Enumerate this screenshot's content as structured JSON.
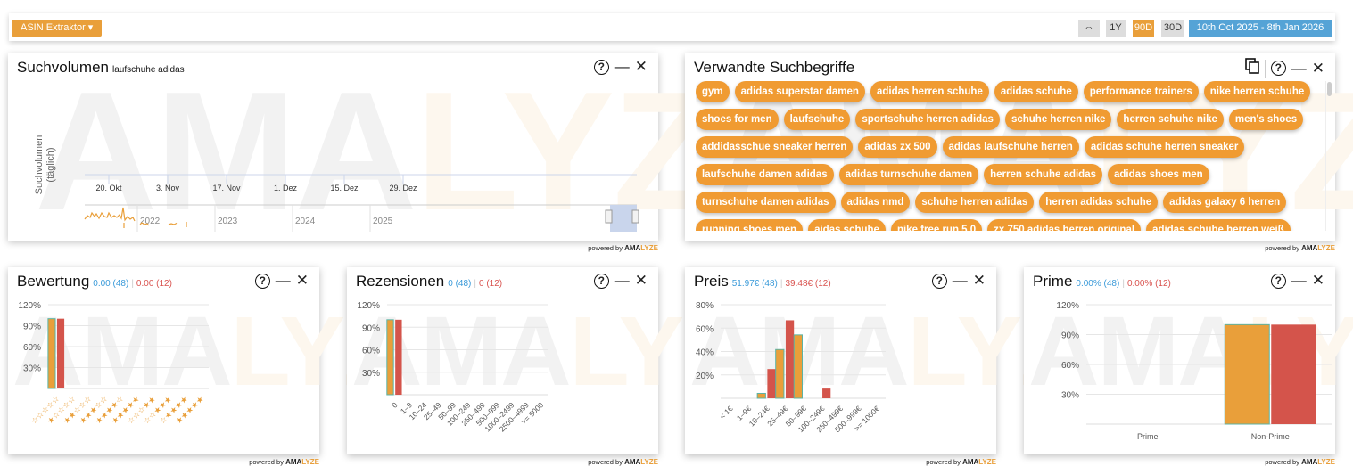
{
  "topbar": {
    "asin_button": "ASIN Extraktor ▾",
    "expand_icon": "⇔",
    "range_1y": "1Y",
    "range_90d": "90D",
    "range_30d": "30D",
    "date_range": "10th Oct 2025 - 8th Jan 2026",
    "active_range": "90D"
  },
  "powered": {
    "text": "powered by",
    "brand_a": "AMA",
    "brand_b": "LYZE"
  },
  "watermark": {
    "a": "AMA",
    "b": "LYZE"
  },
  "controls": {
    "help": "?",
    "minimize": "—",
    "close": "✕",
    "copy_icon": "copy-icon"
  },
  "colors": {
    "orange": "#e99f3a",
    "red": "#d4544b",
    "blue": "#3a9ad9",
    "accent": "#f09b32"
  },
  "suchvolumen": {
    "title": "Suchvolumen",
    "keyword": "laufschuhe adidas",
    "ylabel_1": "Suchvolumen",
    "ylabel_2": "(täglich)",
    "chart_data": {
      "type": "line",
      "x_ticks": [
        "20. Okt",
        "3. Nov",
        "17. Nov",
        "1. Dez",
        "15. Dez",
        "29. Dez"
      ],
      "navigator_ticks": [
        "2022",
        "2023",
        "2024",
        "2025"
      ],
      "ylabel": "Suchvolumen (täglich)",
      "series": []
    }
  },
  "verwandte": {
    "title": "Verwandte Suchbegriffe",
    "tags": [
      "gym",
      "adidas superstar damen",
      "adidas herren schuhe",
      "adidas schuhe",
      "performance trainers",
      "nike herren schuhe",
      "shoes for men",
      "laufschuhe",
      "sportschuhe herren adidas",
      "schuhe herren nike",
      "herren schuhe nike",
      "men's shoes",
      "addidasschue sneaker herren",
      "adidas zx 500",
      "adidas laufschuhe herren",
      "adidas schuhe herren sneaker",
      "laufschuhe damen adidas",
      "adidas turnschuhe damen",
      "herren schuhe adidas",
      "adidas shoes men",
      "turnschuhe damen adidas",
      "adidas nmd",
      "schuhe herren adidas",
      "herren adidas schuhe",
      "adidas galaxy 6 herren",
      "running shoes men",
      "aidas schuhe",
      "nike free run 5.0",
      "zx 750 adidas herren original",
      "adidas schuhe herren weiß"
    ]
  },
  "bewertung": {
    "title": "Bewertung",
    "stat_blue": "0.00 (48)",
    "stat_red": "0.00 (12)",
    "chart_data": {
      "type": "bar",
      "categories": [
        "☆☆☆☆☆",
        "★☆☆☆☆",
        "★★☆☆☆",
        "★★★☆☆",
        "★★★★☆",
        "★★★★★",
        "☆☆☆★★",
        "☆☆★★★",
        "☆★★★★",
        "★★★★★"
      ],
      "series": [
        {
          "name": "blue (48)",
          "values": [
            100,
            0,
            0,
            0,
            0,
            0,
            0,
            0,
            0,
            0
          ]
        },
        {
          "name": "red (12)",
          "values": [
            100,
            0,
            0,
            0,
            0,
            0,
            0,
            0,
            0,
            0
          ]
        }
      ],
      "y_ticks": [
        "30%",
        "60%",
        "90%",
        "120%"
      ],
      "ylim": [
        0,
        120
      ]
    }
  },
  "rezensionen": {
    "title": "Rezensionen",
    "stat_blue": "0 (48)",
    "stat_red": "0 (12)",
    "chart_data": {
      "type": "bar",
      "categories": [
        "0",
        "1–9",
        "10–24",
        "25–49",
        "50–99",
        "100–249",
        "250–499",
        "500–999",
        "1000–2499",
        "2500–4999",
        ">= 5000"
      ],
      "series": [
        {
          "name": "blue (48)",
          "values": [
            100,
            0,
            0,
            0,
            0,
            0,
            0,
            0,
            0,
            0,
            0
          ]
        },
        {
          "name": "red (12)",
          "values": [
            100,
            0,
            0,
            0,
            0,
            0,
            0,
            0,
            0,
            0,
            0
          ]
        }
      ],
      "y_ticks": [
        "30%",
        "60%",
        "90%",
        "120%"
      ],
      "ylim": [
        0,
        120
      ]
    }
  },
  "preis": {
    "title": "Preis",
    "stat_blue": "51.97€ (48)",
    "stat_red": "39.48€ (12)",
    "chart_data": {
      "type": "bar",
      "categories": [
        "< 1€",
        "1–9€",
        "10–24€",
        "25–49€",
        "50–99€",
        "100–249€",
        "250–499€",
        "500–999€",
        ">= 1000€"
      ],
      "series": [
        {
          "name": "blue (48)",
          "values": [
            0,
            0,
            4.2,
            41.7,
            54.2,
            0,
            0,
            0,
            0
          ]
        },
        {
          "name": "red (12)",
          "values": [
            0,
            0,
            25,
            66.7,
            0,
            8.3,
            0,
            0,
            0
          ]
        }
      ],
      "y_ticks": [
        "20%",
        "40%",
        "60%",
        "80%"
      ],
      "ylim": [
        0,
        80
      ]
    }
  },
  "prime": {
    "title": "Prime",
    "stat_blue": "0.00% (48)",
    "stat_red": "0.00% (12)",
    "chart_data": {
      "type": "bar",
      "categories": [
        "Prime",
        "Non-Prime"
      ],
      "series": [
        {
          "name": "blue (48)",
          "values": [
            0,
            100
          ]
        },
        {
          "name": "red (12)",
          "values": [
            0,
            100
          ]
        }
      ],
      "y_ticks": [
        "30%",
        "60%",
        "90%",
        "120%"
      ],
      "ylim": [
        0,
        120
      ]
    }
  }
}
